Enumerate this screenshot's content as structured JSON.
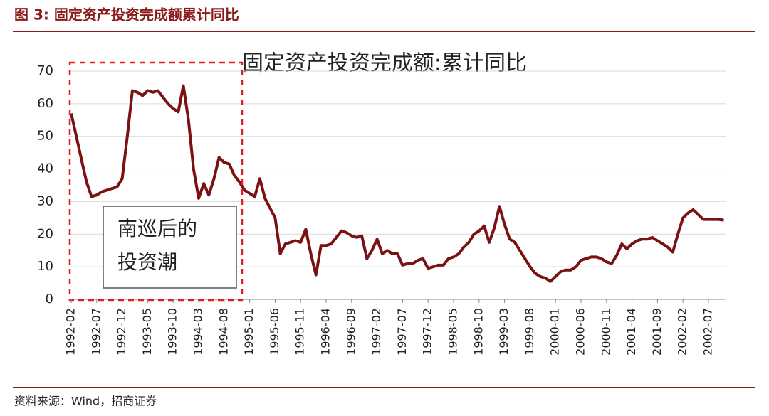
{
  "header": {
    "title": "图 3:  固定资产投资完成额累计同比"
  },
  "chart_data": {
    "type": "line",
    "title": "固定资产投资完成额:累计同比",
    "annotation": [
      "南巡后的",
      "投资潮"
    ],
    "categories": [
      "1992-02",
      null,
      null,
      null,
      null,
      "1992-07",
      null,
      null,
      null,
      null,
      "1992-12",
      null,
      null,
      null,
      null,
      "1993-05",
      null,
      null,
      null,
      null,
      "1993-10",
      null,
      null,
      null,
      null,
      "1994-03",
      null,
      null,
      null,
      null,
      "1994-08",
      null,
      null,
      null,
      null,
      "1995-01",
      null,
      null,
      null,
      null,
      "1995-06",
      null,
      null,
      null,
      null,
      "1995-11",
      null,
      null,
      null,
      null,
      "1996-04",
      null,
      null,
      null,
      null,
      "1996-09",
      null,
      null,
      null,
      null,
      "1997-02",
      null,
      null,
      null,
      null,
      "1997-07",
      null,
      null,
      null,
      null,
      "1997-12",
      null,
      null,
      null,
      null,
      "1998-05",
      null,
      null,
      null,
      null,
      "1998-10",
      null,
      null,
      null,
      null,
      "1999-03",
      null,
      null,
      null,
      null,
      "1999-08",
      null,
      null,
      null,
      null,
      "2000-01",
      null,
      null,
      null,
      null,
      "2000-06",
      null,
      null,
      null,
      null,
      "2000-11",
      null,
      null,
      null,
      null,
      "2001-04",
      null,
      null,
      null,
      null,
      "2001-09",
      null,
      null,
      null,
      null,
      "2002-02",
      null,
      null,
      null,
      null,
      "2002-07",
      null,
      null,
      null
    ],
    "series": [
      {
        "name": "固定资产投资完成额:累计同比",
        "color": "#7a1214",
        "values": [
          57,
          50,
          43,
          36,
          31.5,
          32,
          33,
          33.5,
          34,
          34.5,
          37,
          50,
          64,
          63.5,
          62.5,
          64,
          63.5,
          64,
          62,
          60,
          58.5,
          57.5,
          65.5,
          55,
          40,
          31,
          35.5,
          32,
          37,
          43.5,
          42,
          41.5,
          38,
          36,
          33.5,
          32.5,
          31.5,
          37,
          31,
          28,
          25,
          14,
          17,
          17.5,
          18,
          17.5,
          21.5,
          14,
          7.5,
          16.5,
          16.5,
          17,
          19,
          21,
          20.5,
          19.5,
          19,
          19.5,
          12.5,
          15,
          18.5,
          14,
          15,
          14,
          14,
          10.5,
          11,
          11,
          12,
          12.5,
          9.5,
          10,
          10.5,
          10.5,
          12.5,
          13,
          14,
          16,
          17.5,
          20,
          21,
          22.5,
          17.5,
          22,
          28.5,
          23,
          18.5,
          17.5,
          15,
          12.5,
          10,
          8,
          7,
          6.5,
          5.5,
          7,
          8.5,
          9,
          9,
          10,
          12,
          12.5,
          13,
          13,
          12.5,
          11.5,
          11,
          13.5,
          17,
          15.5,
          17,
          18,
          18.5,
          18.5,
          19,
          18,
          17,
          16,
          14.5,
          20,
          25,
          26.5,
          27.5,
          26,
          24.5,
          24.5,
          24.5,
          24.5,
          24.3
        ]
      }
    ],
    "ylim": [
      0,
      70
    ],
    "yticks": [
      0,
      10,
      20,
      30,
      40,
      50,
      60,
      70
    ],
    "grid": true
  },
  "footer": {
    "source": "资料来源：Wind，招商证券"
  }
}
